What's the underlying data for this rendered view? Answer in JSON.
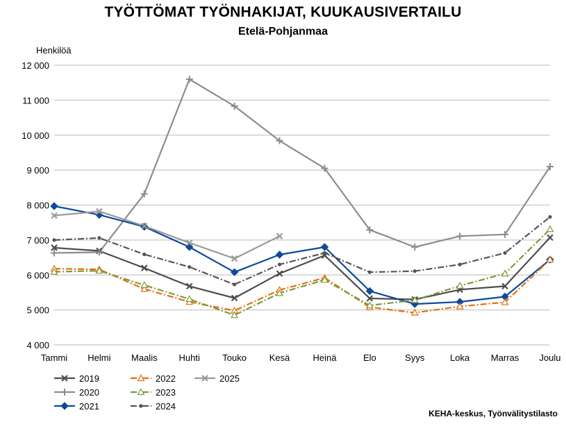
{
  "chart_data": {
    "type": "line",
    "title": "TYÖTTÖMAT TYÖNHAKIJAT, KUUKAUSIVERTAILU",
    "subtitle": "Etelä-Pohjanmaa",
    "ylabel": "Henkilöä",
    "xlabel": "",
    "source": "KEHA-keskus, Työnvälitystilasto",
    "ylim": [
      4000,
      12000
    ],
    "yticks": [
      4000,
      5000,
      6000,
      7000,
      8000,
      9000,
      10000,
      11000,
      12000
    ],
    "ytick_labels": [
      "4 000",
      "5 000",
      "6 000",
      "7 000",
      "8 000",
      "9 000",
      "10 000",
      "11 000",
      "12 000"
    ],
    "grid": "horizontal",
    "legend_position": "bottom-left",
    "categories": [
      "Tammi",
      "Helmi",
      "Maalis",
      "Huhti",
      "Touko",
      "Kesä",
      "Heinä",
      "Elo",
      "Syys",
      "Loka",
      "Marras",
      "Joulu"
    ],
    "series": [
      {
        "name": "2019",
        "color": "#4d4d4d",
        "dash": "solid",
        "marker": "x",
        "values": [
          6780,
          6690,
          6200,
          5680,
          5340,
          6040,
          6560,
          5330,
          5300,
          5580,
          5680,
          7070
        ]
      },
      {
        "name": "2020",
        "color": "#8c8c8c",
        "dash": "solid",
        "marker": "plus",
        "values": [
          6630,
          6650,
          8320,
          11600,
          10830,
          9840,
          9050,
          7290,
          6800,
          7110,
          7160,
          9100
        ]
      },
      {
        "name": "2021",
        "color": "#0d4a9a",
        "dash": "solid",
        "marker": "diamond",
        "values": [
          7970,
          7720,
          7380,
          6800,
          6080,
          6580,
          6800,
          5540,
          5170,
          5230,
          5380,
          6440
        ]
      },
      {
        "name": "2022",
        "color": "#e2700b",
        "dash": "dash-dot",
        "marker": "triangle",
        "values": [
          6180,
          6160,
          5600,
          5230,
          4980,
          5570,
          5920,
          5080,
          4920,
          5100,
          5220,
          6440
        ]
      },
      {
        "name": "2023",
        "color": "#7a9a3c",
        "dash": "dash-dot",
        "marker": "triangle",
        "values": [
          6090,
          6120,
          5710,
          5310,
          4850,
          5480,
          5860,
          5130,
          5280,
          5690,
          6040,
          7310
        ]
      },
      {
        "name": "2024",
        "color": "#555555",
        "dash": "dash-dot",
        "marker": "dot",
        "values": [
          7000,
          7060,
          6590,
          6230,
          5730,
          6300,
          6630,
          6080,
          6110,
          6300,
          6630,
          7660
        ]
      },
      {
        "name": "2025",
        "color": "#9a9a9a",
        "dash": "solid",
        "marker": "x",
        "values": [
          7700,
          7820,
          7400,
          6920,
          6470,
          7110,
          null,
          null,
          null,
          null,
          null,
          null
        ]
      }
    ]
  }
}
